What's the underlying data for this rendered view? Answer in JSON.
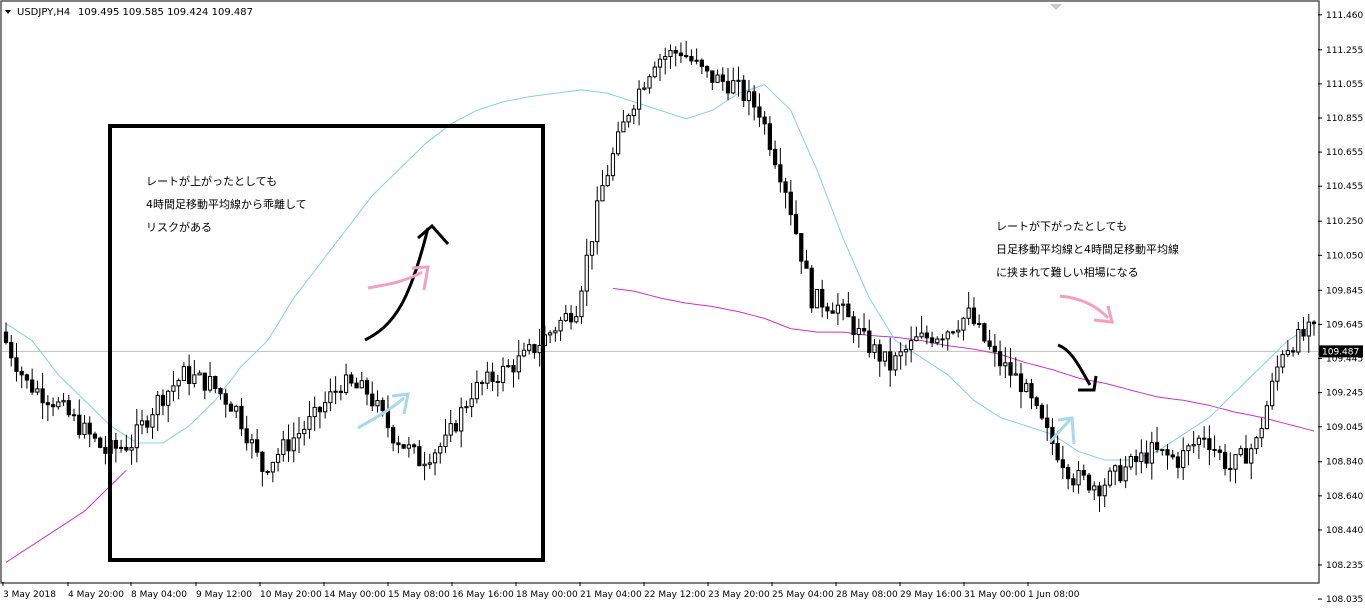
{
  "header": {
    "symbol": "USDJPY,H4",
    "ohlc": "109.495 109.585 109.424 109.487",
    "menu_icon": "triangle-down-icon"
  },
  "chart_data": {
    "type": "candlestick",
    "ylim": [
      108.135,
      111.535
    ],
    "y_ticks": [
      "111.460",
      "111.255",
      "111.055",
      "110.855",
      "110.655",
      "110.455",
      "110.250",
      "110.050",
      "109.845",
      "109.645",
      "109.445",
      "109.245",
      "109.045",
      "108.840",
      "108.640",
      "108.440",
      "108.235",
      "108.035"
    ],
    "current_price": "109.487",
    "x_ticks": [
      "3 May 2018",
      "4 May 20:00",
      "8 May 04:00",
      "9 May 12:00",
      "10 May 20:00",
      "14 May 00:00",
      "15 May 08:00",
      "16 May 16:00",
      "18 May 00:00",
      "21 May 04:00",
      "22 May 12:00",
      "23 May 20:00",
      "25 May 04:00",
      "28 May 08:00",
      "29 May 16:00",
      "31 May 00:00",
      "1 Jun 08:00"
    ],
    "candle_anchors": [
      [
        0,
        109.6
      ],
      [
        5,
        109.3
      ],
      [
        10,
        109.2
      ],
      [
        15,
        109.05
      ],
      [
        20,
        108.9
      ],
      [
        25,
        108.95
      ],
      [
        30,
        109.2
      ],
      [
        35,
        109.35
      ],
      [
        40,
        109.3
      ],
      [
        45,
        109.15
      ],
      [
        50,
        108.8
      ],
      [
        55,
        108.95
      ],
      [
        60,
        109.1
      ],
      [
        65,
        109.3
      ],
      [
        70,
        109.25
      ],
      [
        75,
        109.0
      ],
      [
        80,
        108.85
      ],
      [
        85,
        108.95
      ],
      [
        90,
        109.25
      ],
      [
        95,
        109.35
      ],
      [
        100,
        109.45
      ],
      [
        105,
        109.6
      ],
      [
        110,
        109.75
      ],
      [
        115,
        110.45
      ],
      [
        120,
        110.9
      ],
      [
        125,
        111.2
      ],
      [
        130,
        111.25
      ],
      [
        135,
        111.1
      ],
      [
        140,
        111.05
      ],
      [
        145,
        110.9
      ],
      [
        150,
        110.45
      ],
      [
        155,
        109.8
      ],
      [
        160,
        109.75
      ],
      [
        165,
        109.55
      ],
      [
        170,
        109.4
      ],
      [
        175,
        109.55
      ],
      [
        180,
        109.6
      ],
      [
        185,
        109.7
      ],
      [
        190,
        109.45
      ],
      [
        195,
        109.3
      ],
      [
        200,
        109.0
      ],
      [
        205,
        108.75
      ],
      [
        210,
        108.7
      ],
      [
        215,
        108.8
      ],
      [
        220,
        108.9
      ],
      [
        225,
        108.85
      ],
      [
        230,
        109.0
      ],
      [
        235,
        108.8
      ],
      [
        240,
        108.95
      ],
      [
        245,
        109.5
      ],
      [
        250,
        109.6
      ]
    ],
    "ma_h4_anchors": [
      [
        0,
        109.65
      ],
      [
        5,
        109.55
      ],
      [
        10,
        109.35
      ],
      [
        15,
        109.2
      ],
      [
        20,
        109.05
      ],
      [
        25,
        108.95
      ],
      [
        30,
        108.95
      ],
      [
        35,
        109.05
      ],
      [
        40,
        109.2
      ],
      [
        45,
        109.4
      ],
      [
        50,
        109.55
      ],
      [
        55,
        109.8
      ],
      [
        60,
        110.0
      ],
      [
        65,
        110.2
      ],
      [
        70,
        110.4
      ],
      [
        75,
        110.55
      ],
      [
        80,
        110.7
      ],
      [
        85,
        110.82
      ],
      [
        90,
        110.9
      ],
      [
        95,
        110.95
      ],
      [
        100,
        110.98
      ],
      [
        105,
        111.0
      ],
      [
        110,
        111.02
      ],
      [
        115,
        111.0
      ],
      [
        120,
        110.95
      ],
      [
        125,
        110.9
      ],
      [
        130,
        110.85
      ],
      [
        135,
        110.9
      ],
      [
        140,
        111.0
      ],
      [
        145,
        111.05
      ],
      [
        150,
        110.9
      ],
      [
        155,
        110.55
      ],
      [
        160,
        110.15
      ],
      [
        165,
        109.8
      ],
      [
        170,
        109.55
      ],
      [
        175,
        109.45
      ],
      [
        180,
        109.35
      ],
      [
        185,
        109.2
      ],
      [
        190,
        109.1
      ],
      [
        195,
        109.05
      ],
      [
        200,
        109.0
      ],
      [
        205,
        108.9
      ],
      [
        210,
        108.85
      ],
      [
        215,
        108.85
      ],
      [
        220,
        108.9
      ],
      [
        225,
        109.0
      ],
      [
        230,
        109.1
      ],
      [
        235,
        109.25
      ],
      [
        240,
        109.4
      ],
      [
        245,
        109.55
      ],
      [
        250,
        109.65
      ]
    ],
    "ma_daily_anchors": [
      [
        0,
        108.25
      ],
      [
        5,
        108.35
      ],
      [
        10,
        108.45
      ],
      [
        15,
        108.55
      ],
      [
        20,
        108.7
      ],
      [
        25,
        108.85
      ],
      [
        30,
        109.0
      ],
      [
        35,
        109.2
      ],
      [
        40,
        109.35
      ],
      [
        45,
        109.48
      ],
      [
        50,
        109.58
      ],
      [
        55,
        109.68
      ],
      [
        60,
        109.76
      ],
      [
        65,
        109.82
      ],
      [
        70,
        109.86
      ],
      [
        75,
        109.88
      ],
      [
        80,
        109.9
      ],
      [
        85,
        109.9
      ],
      [
        90,
        109.92
      ],
      [
        95,
        109.93
      ],
      [
        100,
        109.92
      ],
      [
        105,
        109.9
      ],
      [
        110,
        109.88
      ],
      [
        115,
        109.86
      ],
      [
        120,
        109.84
      ],
      [
        125,
        109.8
      ],
      [
        130,
        109.77
      ],
      [
        135,
        109.75
      ],
      [
        140,
        109.72
      ],
      [
        145,
        109.68
      ],
      [
        150,
        109.62
      ],
      [
        155,
        109.6
      ],
      [
        160,
        109.6
      ],
      [
        165,
        109.58
      ],
      [
        170,
        109.57
      ],
      [
        175,
        109.55
      ],
      [
        180,
        109.52
      ],
      [
        185,
        109.5
      ],
      [
        190,
        109.47
      ],
      [
        195,
        109.42
      ],
      [
        200,
        109.38
      ],
      [
        205,
        109.33
      ],
      [
        210,
        109.3
      ],
      [
        215,
        109.26
      ],
      [
        220,
        109.22
      ],
      [
        225,
        109.2
      ],
      [
        230,
        109.17
      ],
      [
        235,
        109.13
      ],
      [
        240,
        109.1
      ],
      [
        245,
        109.06
      ],
      [
        250,
        109.02
      ]
    ],
    "annotations": {
      "left_lines": [
        "レートが上がったとしても",
        "4時間足移動平均線から乖離して",
        "リスクがある"
      ],
      "right_lines": [
        "レートが下がったとしても",
        "日足移動平均線と4時間足移動平均線",
        "に挟まれて難しい相場になる"
      ]
    },
    "colors": {
      "bull": "#ffffff",
      "bear": "#000000",
      "ma_h4": "#87ceeb",
      "ma_daily": "#cc33cc",
      "arrow_pink": "#f4a0c0",
      "arrow_blue": "#a8d8ec",
      "current_line": "#c0c0c0"
    }
  }
}
